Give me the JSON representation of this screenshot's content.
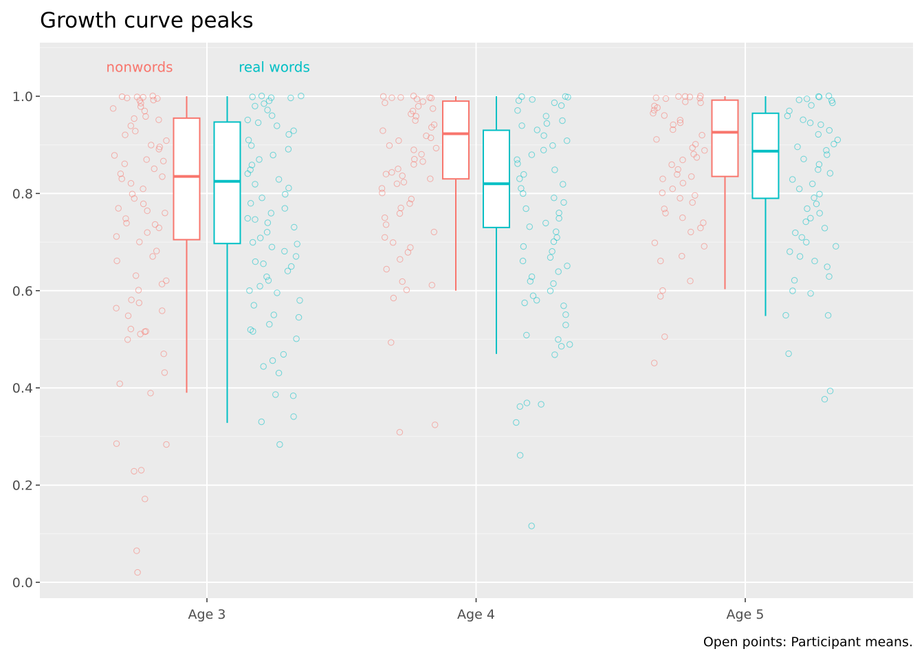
{
  "chart_data": {
    "type": "box",
    "title": "Growth curve peaks",
    "caption": "Open points: Participant means.",
    "xlabel": "",
    "ylabel": "",
    "categories": [
      "Age 3",
      "Age 4",
      "Age 5"
    ],
    "ylim": [
      -0.03,
      1.1
    ],
    "yticks": [
      0.0,
      0.2,
      0.4,
      0.6,
      0.8,
      1.0
    ],
    "ytick_labels": [
      "0.0",
      "0.2",
      "0.4",
      "0.6",
      "0.8",
      "1.0"
    ],
    "grid": true,
    "legend": "none (direct labels above Age 3)",
    "series": [
      {
        "name": "nonwords",
        "color": "#F8766D",
        "boxes": [
          {
            "category": "Age 3",
            "min": 0.39,
            "q1": 0.705,
            "median": 0.835,
            "q3": 0.955,
            "max": 1.0
          },
          {
            "category": "Age 4",
            "min": 0.6,
            "q1": 0.83,
            "median": 0.923,
            "q3": 0.99,
            "max": 1.0
          },
          {
            "category": "Age 5",
            "min": 0.603,
            "q1": 0.835,
            "median": 0.926,
            "q3": 0.992,
            "max": 1.0
          }
        ],
        "points": [
          [
            1.0,
            1.0,
            0.998,
            0.997,
            0.996,
            0.995,
            0.993,
            0.99,
            0.985,
            0.98,
            0.975,
            0.97,
            0.96,
            0.955,
            0.95,
            0.94,
            0.93,
            0.92,
            0.91,
            0.9,
            0.895,
            0.89,
            0.88,
            0.87,
            0.865,
            0.86,
            0.85,
            0.84,
            0.835,
            0.83,
            0.82,
            0.81,
            0.8,
            0.79,
            0.78,
            0.77,
            0.765,
            0.76,
            0.75,
            0.74,
            0.735,
            0.73,
            0.72,
            0.71,
            0.7,
            0.68,
            0.67,
            0.66,
            0.63,
            0.62,
            0.615,
            0.6,
            0.58,
            0.575,
            0.565,
            0.56,
            0.55,
            0.52,
            0.515,
            0.515,
            0.51,
            0.5,
            0.47,
            0.43,
            0.41,
            0.39,
            0.285,
            0.285,
            0.23,
            0.23,
            0.17,
            0.065,
            0.02
          ],
          [
            1.0,
            1.0,
            0.999,
            0.998,
            0.997,
            0.996,
            0.995,
            0.99,
            0.985,
            0.98,
            0.975,
            0.97,
            0.965,
            0.96,
            0.95,
            0.94,
            0.935,
            0.93,
            0.92,
            0.915,
            0.91,
            0.9,
            0.895,
            0.89,
            0.88,
            0.87,
            0.865,
            0.86,
            0.85,
            0.845,
            0.84,
            0.835,
            0.83,
            0.825,
            0.82,
            0.81,
            0.8,
            0.79,
            0.78,
            0.77,
            0.76,
            0.75,
            0.735,
            0.72,
            0.71,
            0.7,
            0.69,
            0.68,
            0.665,
            0.645,
            0.62,
            0.61,
            0.6,
            0.585,
            0.495,
            0.325,
            0.31
          ],
          [
            1.0,
            1.0,
            0.999,
            0.998,
            0.997,
            0.996,
            0.995,
            0.99,
            0.985,
            0.98,
            0.975,
            0.97,
            0.965,
            0.96,
            0.95,
            0.945,
            0.94,
            0.93,
            0.92,
            0.91,
            0.9,
            0.895,
            0.89,
            0.88,
            0.875,
            0.87,
            0.86,
            0.85,
            0.84,
            0.835,
            0.83,
            0.82,
            0.81,
            0.8,
            0.795,
            0.79,
            0.78,
            0.77,
            0.76,
            0.75,
            0.74,
            0.73,
            0.72,
            0.7,
            0.69,
            0.67,
            0.66,
            0.62,
            0.6,
            0.59,
            0.505,
            0.45
          ]
        ]
      },
      {
        "name": "real words",
        "color": "#00BFC4",
        "boxes": [
          {
            "category": "Age 3",
            "min": 0.328,
            "q1": 0.697,
            "median": 0.825,
            "q3": 0.947,
            "max": 1.0
          },
          {
            "category": "Age 4",
            "min": 0.47,
            "q1": 0.73,
            "median": 0.82,
            "q3": 0.93,
            "max": 1.0
          },
          {
            "category": "Age 5",
            "min": 0.548,
            "q1": 0.79,
            "median": 0.887,
            "q3": 0.965,
            "max": 1.0
          }
        ],
        "points": [
          [
            1.0,
            0.999,
            0.998,
            0.997,
            0.995,
            0.99,
            0.985,
            0.98,
            0.97,
            0.96,
            0.95,
            0.945,
            0.94,
            0.93,
            0.92,
            0.91,
            0.9,
            0.89,
            0.88,
            0.87,
            0.86,
            0.85,
            0.84,
            0.83,
            0.82,
            0.81,
            0.8,
            0.79,
            0.78,
            0.77,
            0.76,
            0.75,
            0.745,
            0.74,
            0.73,
            0.72,
            0.71,
            0.7,
            0.695,
            0.69,
            0.68,
            0.67,
            0.66,
            0.655,
            0.65,
            0.64,
            0.63,
            0.62,
            0.61,
            0.6,
            0.595,
            0.58,
            0.57,
            0.55,
            0.545,
            0.53,
            0.52,
            0.515,
            0.5,
            0.47,
            0.455,
            0.445,
            0.43,
            0.385,
            0.385,
            0.34,
            0.33,
            0.285
          ],
          [
            1.0,
            0.999,
            0.998,
            0.995,
            0.99,
            0.985,
            0.98,
            0.97,
            0.96,
            0.95,
            0.945,
            0.94,
            0.93,
            0.92,
            0.91,
            0.9,
            0.89,
            0.88,
            0.87,
            0.86,
            0.85,
            0.84,
            0.83,
            0.82,
            0.81,
            0.8,
            0.79,
            0.78,
            0.77,
            0.76,
            0.75,
            0.74,
            0.73,
            0.72,
            0.71,
            0.7,
            0.69,
            0.68,
            0.67,
            0.66,
            0.65,
            0.64,
            0.63,
            0.62,
            0.615,
            0.6,
            0.59,
            0.58,
            0.575,
            0.57,
            0.55,
            0.53,
            0.51,
            0.5,
            0.49,
            0.485,
            0.47,
            0.37,
            0.365,
            0.36,
            0.33,
            0.26,
            0.115
          ],
          [
            1.0,
            0.999,
            0.998,
            0.996,
            0.993,
            0.99,
            0.985,
            0.98,
            0.97,
            0.96,
            0.95,
            0.945,
            0.94,
            0.93,
            0.92,
            0.91,
            0.9,
            0.895,
            0.89,
            0.88,
            0.87,
            0.86,
            0.85,
            0.84,
            0.83,
            0.82,
            0.81,
            0.8,
            0.79,
            0.78,
            0.77,
            0.76,
            0.75,
            0.74,
            0.73,
            0.72,
            0.71,
            0.7,
            0.69,
            0.68,
            0.67,
            0.66,
            0.65,
            0.63,
            0.62,
            0.6,
            0.595,
            0.55,
            0.548,
            0.47,
            0.395,
            0.378
          ]
        ]
      }
    ],
    "annotations": [
      {
        "text": "nonwords",
        "series": "nonwords",
        "category": "Age 3",
        "y": 1.06
      },
      {
        "text": "real words",
        "series": "real words",
        "category": "Age 3",
        "y": 1.06
      }
    ]
  }
}
